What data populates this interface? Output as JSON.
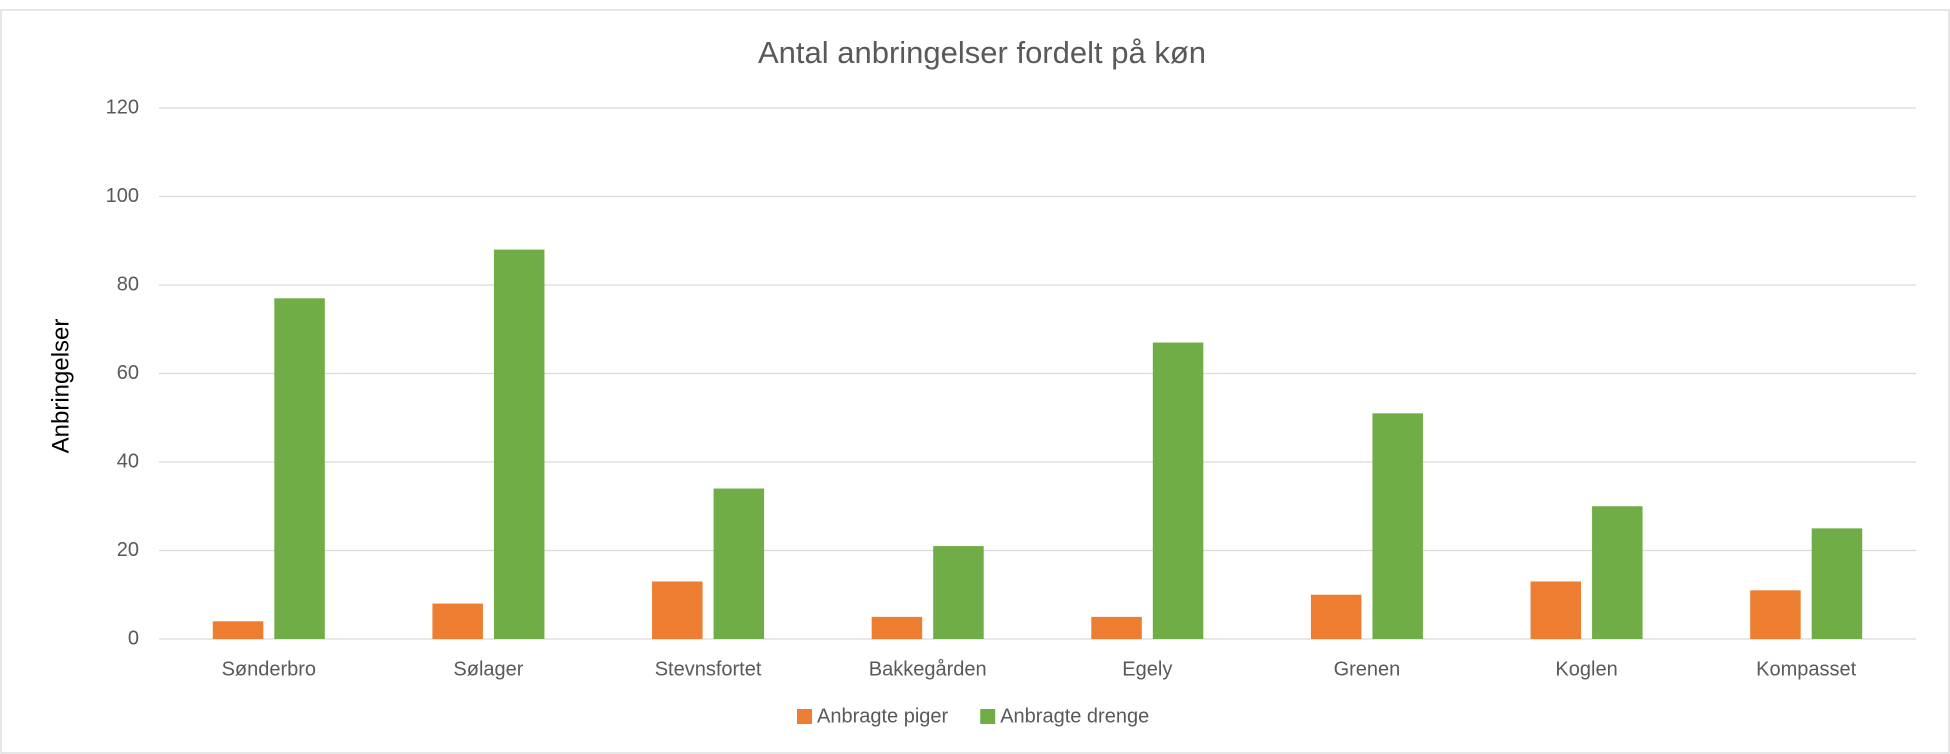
{
  "chart_data": {
    "type": "bar",
    "title": "Antal anbringelser fordelt på køn",
    "y_label": "Anbringelser",
    "categories": [
      "Sønderbro",
      "Sølager",
      "Stevnsfortet",
      "Bakkegården",
      "Egely",
      "Grenen",
      "Koglen",
      "Kompasset"
    ],
    "series": [
      {
        "name": "Anbragte piger",
        "color": "#ed7d31",
        "values": [
          4,
          8,
          13,
          5,
          5,
          10,
          13,
          11
        ]
      },
      {
        "name": "Anbragte drenge",
        "color": "#70ad47",
        "values": [
          77,
          88,
          34,
          21,
          67,
          51,
          30,
          25
        ]
      }
    ],
    "ylim": [
      0,
      120
    ],
    "yticks": [
      0,
      20,
      40,
      60,
      80,
      100,
      120
    ],
    "grid": true,
    "legend": "bottom"
  }
}
